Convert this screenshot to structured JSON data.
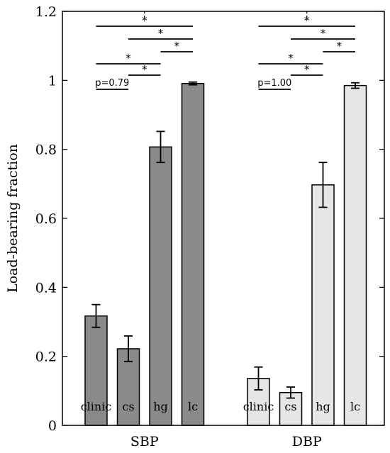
{
  "chart_data": {
    "type": "bar",
    "title": "",
    "xlabel": "",
    "ylabel": "Load-bearing fraction",
    "ylim": [
      0,
      1.2
    ],
    "yticks": [
      "0",
      "0.2",
      "0.4",
      "0.6",
      "0.8",
      "1",
      "1.2"
    ],
    "groups": [
      {
        "name": "SBP",
        "color": "#8a8a8a",
        "categories": [
          "clinic",
          "cs",
          "hg",
          "lc"
        ],
        "values": [
          0.317,
          0.222,
          0.807,
          0.991
        ],
        "errors": [
          0.033,
          0.037,
          0.045,
          0.004
        ],
        "significance": [
          {
            "pair": [
              0,
              3
            ],
            "label": "*"
          },
          {
            "pair": [
              1,
              3
            ],
            "label": "*"
          },
          {
            "pair": [
              2,
              3
            ],
            "label": "*"
          },
          {
            "pair": [
              0,
              2
            ],
            "label": "*"
          },
          {
            "pair": [
              1,
              2
            ],
            "label": "*"
          },
          {
            "pair": [
              0,
              1
            ],
            "label": "p=0.79"
          }
        ]
      },
      {
        "name": "DBP",
        "color": "#e6e6e6",
        "categories": [
          "clinic",
          "cs",
          "hg",
          "lc"
        ],
        "values": [
          0.136,
          0.095,
          0.697,
          0.985
        ],
        "errors": [
          0.033,
          0.016,
          0.065,
          0.008
        ],
        "significance": [
          {
            "pair": [
              0,
              3
            ],
            "label": "*"
          },
          {
            "pair": [
              1,
              3
            ],
            "label": "*"
          },
          {
            "pair": [
              2,
              3
            ],
            "label": "*"
          },
          {
            "pair": [
              0,
              2
            ],
            "label": "*"
          },
          {
            "pair": [
              1,
              2
            ],
            "label": "*"
          },
          {
            "pair": [
              0,
              1
            ],
            "label": "p=1.00"
          }
        ]
      }
    ],
    "grid": false,
    "legend": "none"
  }
}
